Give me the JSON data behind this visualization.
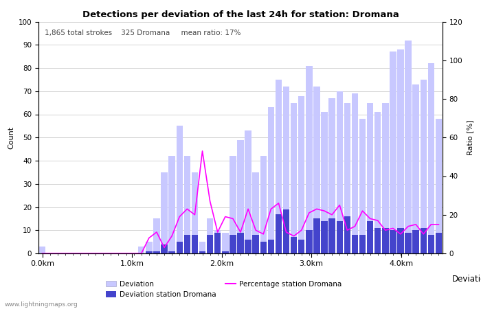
{
  "title": "Detections per deviation of the last 24h for station: Dromana",
  "subtitle": "1,865 total strokes    325 Dromana     mean ratio: 17%",
  "xlabel": "Deviations",
  "ylabel_left": "Count",
  "ylabel_right": "Ratio [%]",
  "watermark": "www.lightningmaps.org",
  "ylim_left": [
    0,
    100
  ],
  "ylim_right": [
    0,
    120
  ],
  "yticks_left": [
    0,
    10,
    20,
    30,
    40,
    50,
    60,
    70,
    80,
    90,
    100
  ],
  "yticks_right": [
    0,
    20,
    40,
    60,
    80,
    100,
    120
  ],
  "x_tick_labels": [
    "0.0km",
    "1.0km",
    "2.0km",
    "3.0km",
    "4.0km"
  ],
  "bar_color_light": "#c8c8ff",
  "bar_color_dark": "#4444cc",
  "line_color": "#ff00ff",
  "background_color": "#ffffff",
  "grid_color": "#cccccc",
  "deviation_bars": [
    3,
    0,
    0,
    0,
    0,
    0,
    0,
    0,
    0,
    0,
    0,
    0,
    0,
    3,
    5,
    15,
    35,
    42,
    55,
    42,
    35,
    5,
    15,
    10,
    9,
    42,
    49,
    53,
    35,
    42,
    63,
    75,
    72,
    65,
    68,
    81,
    72,
    61,
    67,
    70,
    65,
    69,
    58,
    65,
    61,
    65,
    87,
    88,
    92,
    73,
    75,
    82,
    58
  ],
  "station_bars": [
    0,
    0,
    0,
    0,
    0,
    0,
    0,
    0,
    0,
    0,
    0,
    0,
    0,
    0,
    1,
    1,
    4,
    1,
    5,
    8,
    8,
    1,
    8,
    9,
    1,
    8,
    9,
    6,
    8,
    5,
    6,
    17,
    19,
    7,
    6,
    10,
    15,
    14,
    15,
    14,
    16,
    8,
    8,
    14,
    11,
    11,
    10,
    11,
    9,
    10,
    11,
    8,
    9
  ],
  "ratio_line": [
    0,
    0,
    0,
    0,
    0,
    0,
    0,
    0,
    0,
    0,
    0,
    0,
    0,
    0,
    8,
    11,
    3,
    9,
    19,
    23,
    20,
    53,
    27,
    11,
    19,
    18,
    11,
    23,
    12,
    10,
    23,
    26,
    11,
    9,
    12,
    21,
    23,
    22,
    20,
    25,
    12,
    14,
    22,
    18,
    17,
    12,
    13,
    10,
    14,
    15,
    10,
    15,
    15
  ],
  "n_bars": 53,
  "km_per_bar": 0.085,
  "x_tick_km": [
    0.0,
    1.0,
    2.0,
    3.0,
    4.0
  ]
}
